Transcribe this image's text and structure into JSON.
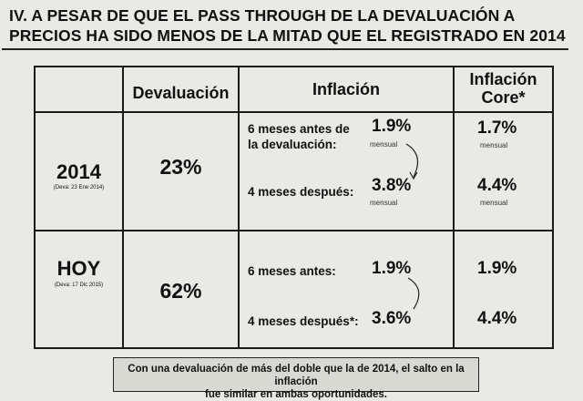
{
  "title": {
    "line1": "IV. A PESAR DE QUE EL PASS THROUGH DE LA DEVALUACIÓN A",
    "line2": "PRECIOS HA SIDO MENOS DE LA MITAD QUE EL REGISTRADO EN 2014"
  },
  "table": {
    "headers": {
      "devaluacion": "Devaluación",
      "inflacion": "Inflación",
      "core_line1": "Inflación",
      "core_line2": "Core*"
    },
    "rows": [
      {
        "year": "2014",
        "deva_date": "(Deva: 23 Ene 2014)",
        "devaluation": "23%",
        "before_label_line1": "6 meses antes de",
        "before_label_line2": "la devaluación:",
        "before_value": "1.9%",
        "before_unit": "mensual",
        "after_label": "4 meses después:",
        "after_value": "3.8%",
        "after_unit": "mensual",
        "core_before": "1.7%",
        "core_before_unit": "mensual",
        "core_after": "4.4%",
        "core_after_unit": "mensual"
      },
      {
        "year": "HOY",
        "deva_date": "(Deva: 17 Dic 2015)",
        "devaluation": "62%",
        "before_label": "6 meses antes:",
        "before_value": "1.9%",
        "after_label": "4 meses después*:",
        "after_value": "3.6%",
        "core_before": "1.9%",
        "core_after": "4.4%"
      }
    ]
  },
  "footer": {
    "line1": "Con una devaluación de más del doble que la de 2014, el salto en la inflación",
    "line2": "fue similar en ambas oportunidades."
  }
}
